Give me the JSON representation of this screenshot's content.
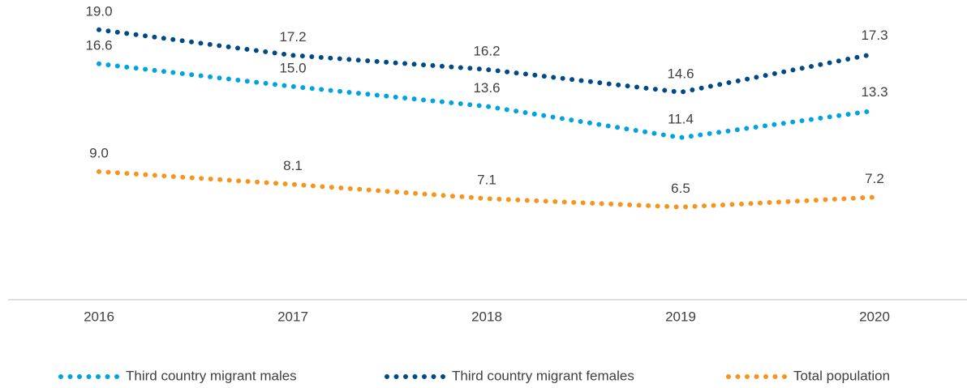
{
  "chart_data": {
    "type": "line",
    "categories": [
      "2016",
      "2017",
      "2018",
      "2019",
      "2020"
    ],
    "series": [
      {
        "name": "Third country migrant males",
        "color": "#00a3e0",
        "values": [
          16.6,
          15,
          13.6,
          11.4,
          13.3
        ],
        "value_labels": [
          "16.6",
          "15.0",
          "13.6",
          "11.4",
          "13.3"
        ]
      },
      {
        "name": "Third country migrant females",
        "color": "#004b87",
        "values": [
          19,
          17.2,
          16.2,
          14.6,
          17.3
        ],
        "value_labels": [
          "19.0",
          "17.2",
          "16.2",
          "14.6",
          "17.3"
        ]
      },
      {
        "name": "Total population",
        "color": "#f7941d",
        "values": [
          9,
          8.1,
          7.1,
          6.5,
          7.2
        ],
        "value_labels": [
          "9.0",
          "8.1",
          "7.1",
          "6.5",
          "7.2"
        ]
      }
    ],
    "ylim": [
      0,
      21.1
    ],
    "legend": "bottom"
  }
}
